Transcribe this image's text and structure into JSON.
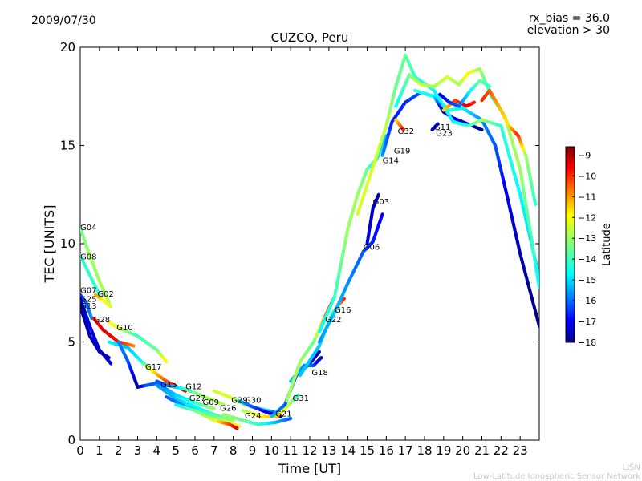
{
  "header": {
    "date": "2009/07/30",
    "rx_bias": "rx_bias = 36.0",
    "elevation": "elevation > 30"
  },
  "footer": {
    "org_short": "LISN",
    "org_long": "Low-Latitude Ionospheric Sensor Network"
  },
  "chart_data": {
    "type": "scatter",
    "title": "CUZCO, Peru",
    "xlabel": "Time [UT]",
    "ylabel": "TEC [UNITS]",
    "xlim": [
      0,
      24
    ],
    "ylim": [
      0,
      20
    ],
    "xticks": [
      0,
      1,
      2,
      3,
      4,
      5,
      6,
      7,
      8,
      9,
      10,
      11,
      12,
      13,
      14,
      15,
      16,
      17,
      18,
      19,
      20,
      21,
      22,
      23
    ],
    "yticks": [
      0,
      5,
      10,
      15,
      20
    ],
    "grid": false,
    "colorbar": {
      "label": "Latitude",
      "range": [
        -18,
        -8.6
      ],
      "ticks": [
        -9,
        -10,
        -11,
        -12,
        -13,
        -14,
        -15,
        -16,
        -17,
        -18
      ],
      "colors": [
        "#00007f",
        "#0000ff",
        "#007fff",
        "#00ffff",
        "#7fff7f",
        "#ffff00",
        "#ff7f00",
        "#ff0000",
        "#7f0000"
      ]
    },
    "series": [
      {
        "name": "G04",
        "label_xy": [
          0.0,
          10.7
        ],
        "points": [
          [
            0,
            10.8,
            -13.5
          ],
          [
            0.5,
            9.4,
            -13
          ],
          [
            1,
            8.1,
            -13
          ],
          [
            1.5,
            7.0,
            -12.8
          ]
        ]
      },
      {
        "name": "G08",
        "label_xy": [
          0.0,
          9.2
        ],
        "points": [
          [
            0,
            9.4,
            -14
          ],
          [
            0.6,
            8.2,
            -14
          ],
          [
            1.0,
            7.4,
            -14.2
          ]
        ]
      },
      {
        "name": "G07",
        "label_xy": [
          0.0,
          7.5
        ],
        "points": [
          [
            0,
            7.4,
            -16.5
          ],
          [
            0.3,
            7.0,
            -16
          ],
          [
            0.6,
            6.2,
            -15.5
          ]
        ]
      },
      {
        "name": "G25",
        "label_xy": [
          0.0,
          7.05
        ],
        "points": [
          [
            0,
            7.2,
            -17.5
          ],
          [
            0.5,
            5.8,
            -17
          ],
          [
            1.0,
            4.6,
            -17
          ],
          [
            1.6,
            3.9,
            -17.2
          ]
        ]
      },
      {
        "name": "G13",
        "label_xy": [
          0.0,
          6.7
        ],
        "points": [
          [
            0,
            6.8,
            -17.8
          ],
          [
            0.5,
            5.3,
            -17.5
          ],
          [
            1.0,
            4.5,
            -17.5
          ],
          [
            1.5,
            4.2,
            -17.5
          ]
        ]
      },
      {
        "name": "G02",
        "label_xy": [
          0.9,
          7.3
        ],
        "points": [
          [
            0.8,
            7.4,
            -11
          ],
          [
            1.2,
            7.1,
            -12
          ],
          [
            1.6,
            6.8,
            -12.5
          ]
        ]
      },
      {
        "name": "G28",
        "label_xy": [
          0.7,
          6.0
        ],
        "points": [
          [
            0.7,
            6.2,
            -10
          ],
          [
            1.2,
            5.6,
            -9.5
          ],
          [
            2,
            5.0,
            -9.8
          ],
          [
            2.8,
            4.8,
            -11
          ]
        ]
      },
      {
        "name": "G10",
        "label_xy": [
          1.9,
          5.6
        ],
        "points": [
          [
            1.5,
            6.0,
            -12
          ],
          [
            2.0,
            5.7,
            -12.5
          ],
          [
            3.0,
            5.3,
            -14
          ],
          [
            4.0,
            4.6,
            -13.5
          ],
          [
            4.5,
            4.0,
            -12
          ]
        ]
      },
      {
        "name": "G17",
        "label_xy": [
          3.4,
          3.6
        ],
        "points": [
          [
            1.5,
            5.0,
            -14.5
          ],
          [
            2.5,
            4.7,
            -15
          ],
          [
            3.2,
            4.0,
            -14.5
          ],
          [
            3.8,
            3.5,
            -12
          ],
          [
            4.5,
            3.0,
            -10.5
          ],
          [
            5.5,
            2.5,
            -9.5
          ]
        ]
      },
      {
        "name": "G15",
        "label_xy": [
          4.2,
          2.7
        ],
        "points": [
          [
            2.0,
            5.0,
            -15.5
          ],
          [
            2.5,
            4.0,
            -16
          ],
          [
            3.0,
            2.7,
            -17.8
          ],
          [
            3.5,
            2.8,
            -16
          ],
          [
            4.0,
            2.9,
            -16
          ],
          [
            5,
            2.3,
            -15
          ],
          [
            6,
            1.9,
            -14
          ],
          [
            7,
            1.6,
            -13
          ]
        ]
      },
      {
        "name": "G12",
        "label_xy": [
          5.5,
          2.6
        ],
        "points": [
          [
            4.0,
            3.0,
            -16
          ],
          [
            4.5,
            2.8,
            -16
          ],
          [
            5.0,
            2.7,
            -15
          ],
          [
            5.5,
            2.6,
            -14
          ],
          [
            6.5,
            2.2,
            -13
          ],
          [
            7.5,
            1.8,
            -13
          ]
        ]
      },
      {
        "name": "G27",
        "label_xy": [
          5.7,
          2.0
        ],
        "points": [
          [
            4.0,
            2.8,
            -15.5
          ],
          [
            5.0,
            2.1,
            -15
          ],
          [
            6.0,
            1.7,
            -14.5
          ],
          [
            7.0,
            1.3,
            -14
          ],
          [
            8.0,
            1.0,
            -13
          ]
        ]
      },
      {
        "name": "G09",
        "label_xy": [
          6.4,
          1.8
        ],
        "points": [
          [
            4.5,
            2.2,
            -16
          ],
          [
            5.5,
            1.7,
            -15.5
          ],
          [
            6.5,
            1.4,
            -14
          ],
          [
            7.5,
            1.0,
            -13
          ],
          [
            8.3,
            0.7,
            -12
          ]
        ]
      },
      {
        "name": "G26",
        "label_xy": [
          7.3,
          1.5
        ],
        "points": [
          [
            5,
            1.8,
            -14.5
          ],
          [
            6,
            1.5,
            -13.5
          ],
          [
            7,
            1.0,
            -12.5
          ],
          [
            7.8,
            0.8,
            -10.5
          ],
          [
            8.2,
            0.6,
            -9.5
          ]
        ]
      },
      {
        "name": "G29",
        "label_xy": [
          7.9,
          1.9
        ],
        "points": [
          [
            7,
            2.5,
            -12.5
          ],
          [
            7.8,
            2.2,
            -12.5
          ],
          [
            8.6,
            1.8,
            -13
          ],
          [
            9.4,
            1.6,
            -14
          ],
          [
            10.2,
            1.4,
            -16
          ]
        ]
      },
      {
        "name": "G30",
        "label_xy": [
          8.6,
          1.9
        ],
        "points": [
          [
            8.3,
            2.0,
            -15
          ],
          [
            9.0,
            1.7,
            -16
          ],
          [
            9.8,
            1.4,
            -17
          ],
          [
            10.5,
            1.2,
            -17.5
          ]
        ]
      },
      {
        "name": "G24",
        "label_xy": [
          8.6,
          1.1
        ],
        "points": [
          [
            7.5,
            1.3,
            -13
          ],
          [
            8.5,
            1.0,
            -13.5
          ],
          [
            9.3,
            0.8,
            -14
          ],
          [
            10.2,
            0.9,
            -15
          ],
          [
            11,
            1.1,
            -16
          ]
        ]
      },
      {
        "name": "G21",
        "label_xy": [
          10.2,
          1.2
        ],
        "points": [
          [
            8.5,
            1.5,
            -13
          ],
          [
            9.5,
            1.2,
            -12
          ],
          [
            10.3,
            1.2,
            -11.5
          ],
          [
            10.8,
            1.7,
            -12.5
          ],
          [
            11.4,
            2.3,
            -14
          ]
        ]
      },
      {
        "name": "G31",
        "label_xy": [
          11.1,
          2.0
        ],
        "points": [
          [
            10.0,
            1.2,
            -15
          ],
          [
            10.7,
            1.8,
            -16
          ],
          [
            11.3,
            3.3,
            -16.5
          ],
          [
            12.0,
            3.9,
            -17
          ],
          [
            12.5,
            4.5,
            -17.5
          ]
        ]
      },
      {
        "name": "G18",
        "label_xy": [
          12.1,
          3.3
        ],
        "points": [
          [
            11,
            3.0,
            -15
          ],
          [
            11.7,
            3.8,
            -15.5
          ],
          [
            12.2,
            3.8,
            -16
          ],
          [
            12.6,
            4.2,
            -17.5
          ]
        ]
      },
      {
        "name": "G22",
        "label_xy": [
          12.8,
          6.0
        ],
        "points": [
          [
            10.8,
            2.0,
            -13
          ],
          [
            11.5,
            4.0,
            -13
          ],
          [
            12.2,
            5.0,
            -13.5
          ],
          [
            12.8,
            6.3,
            -11
          ],
          [
            13.3,
            7.3,
            -9.5
          ]
        ]
      },
      {
        "name": "G16",
        "label_xy": [
          13.3,
          6.5
        ],
        "points": [
          [
            11.5,
            3.3,
            -15
          ],
          [
            12.5,
            4.8,
            -15
          ],
          [
            13.2,
            6.5,
            -14
          ],
          [
            13.8,
            7.2,
            -10
          ]
        ]
      },
      {
        "name": "G06",
        "label_xy": [
          14.8,
          9.7
        ],
        "points": [
          [
            12.5,
            5.0,
            -15.5
          ],
          [
            13.3,
            6.5,
            -15
          ],
          [
            14.0,
            8.0,
            -15.5
          ],
          [
            14.8,
            9.6,
            -16
          ],
          [
            15.3,
            10.1,
            -16.5
          ],
          [
            15.8,
            11.5,
            -17
          ]
        ]
      },
      {
        "name": "G03",
        "label_xy": [
          15.3,
          12.0
        ],
        "points": [
          [
            15.0,
            10.0,
            -17
          ],
          [
            15.3,
            11.8,
            -17.5
          ],
          [
            15.6,
            12.5,
            -17.5
          ]
        ]
      },
      {
        "name": "G14",
        "label_xy": [
          15.8,
          14.1
        ],
        "points": [
          [
            12.5,
            5.5,
            -14.5
          ],
          [
            13.3,
            7.3,
            -14
          ],
          [
            14.0,
            10.8,
            -13
          ],
          [
            14.5,
            12.5,
            -13
          ],
          [
            15.0,
            13.8,
            -13.5
          ],
          [
            15.5,
            14.3,
            -14.5
          ],
          [
            16.0,
            15.5,
            -15
          ]
        ]
      },
      {
        "name": "G19",
        "label_xy": [
          16.4,
          14.6
        ],
        "points": [
          [
            15.8,
            14.5,
            -15.5
          ],
          [
            16.3,
            16.2,
            -16.5
          ],
          [
            17.0,
            17.2,
            -16.5
          ],
          [
            17.8,
            17.7,
            -16
          ],
          [
            18.5,
            17.5,
            -15
          ],
          [
            19.3,
            16.8,
            -14
          ],
          [
            20.0,
            16.9,
            -14.5
          ],
          [
            21.0,
            16.3,
            -15.5
          ],
          [
            21.7,
            15.0,
            -16
          ],
          [
            22.3,
            12.5,
            -17
          ],
          [
            23.0,
            9.5,
            -17.5
          ],
          [
            24,
            5.8,
            -18
          ]
        ]
      },
      {
        "name": "G32",
        "label_xy": [
          16.6,
          15.6
        ],
        "points": [
          [
            16.5,
            16.3,
            -12
          ],
          [
            16.9,
            15.8,
            -10
          ]
        ]
      },
      {
        "name": "G11",
        "label_xy": [
          18.5,
          15.8
        ],
        "points": [
          [
            17.5,
            17.8,
            -14
          ],
          [
            18.5,
            17.5,
            -14.5
          ],
          [
            19.0,
            16.7,
            -17.5
          ],
          [
            19.5,
            16.4,
            -17
          ],
          [
            20.0,
            16.2,
            -17
          ],
          [
            21.0,
            15.8,
            -18
          ]
        ]
      },
      {
        "name": "G23",
        "label_xy": [
          18.6,
          15.5
        ],
        "points": [
          [
            18.4,
            15.8,
            -17.5
          ],
          [
            18.7,
            16.1,
            -17
          ]
        ]
      },
      {
        "name": "ARC1",
        "points": [
          [
            14.5,
            11.5,
            -12.5
          ],
          [
            15.0,
            13.0,
            -12.5
          ],
          [
            15.5,
            14.5,
            -12.5
          ],
          [
            16.0,
            16.0,
            -12.8
          ],
          [
            16.5,
            18.0,
            -13.5
          ],
          [
            17.0,
            19.6,
            -13.5
          ],
          [
            17.5,
            18.5,
            -14
          ],
          [
            18.5,
            17.8,
            -14.5
          ],
          [
            19.5,
            16.2,
            -14.5
          ],
          [
            20.3,
            16.0,
            -14
          ],
          [
            21.0,
            16.3,
            -13
          ],
          [
            22.0,
            16.0,
            -14
          ],
          [
            23.0,
            12.5,
            -14.5
          ],
          [
            24,
            8.3,
            -15
          ]
        ]
      },
      {
        "name": "ARC2",
        "points": [
          [
            16.5,
            17.0,
            -14.5
          ],
          [
            17.2,
            18.6,
            -13.5
          ],
          [
            17.8,
            18.1,
            -12.5
          ],
          [
            18.5,
            18.0,
            -13
          ],
          [
            19.2,
            18.5,
            -12.5
          ],
          [
            19.8,
            18.1,
            -13
          ],
          [
            20.3,
            18.7,
            -12
          ],
          [
            20.9,
            18.9,
            -13
          ],
          [
            21.5,
            17.5,
            -14
          ],
          [
            22.2,
            16.5,
            -13
          ],
          [
            23.0,
            13.8,
            -13
          ],
          [
            24,
            7.8,
            -14.5
          ]
        ]
      },
      {
        "name": "ARC3",
        "points": [
          [
            19.0,
            16.8,
            -12
          ],
          [
            19.6,
            17.3,
            -10.5
          ],
          [
            20.2,
            17.0,
            -9.5
          ],
          [
            20.6,
            17.2,
            -10
          ]
        ]
      },
      {
        "name": "ARC4",
        "points": [
          [
            21.0,
            17.3,
            -10
          ],
          [
            21.4,
            17.8,
            -10.5
          ],
          [
            22.0,
            16.8,
            -11.5
          ],
          [
            22.4,
            16.0,
            -12
          ],
          [
            22.9,
            15.5,
            -10
          ],
          [
            23.3,
            14.5,
            -13
          ],
          [
            23.8,
            12.0,
            -14
          ]
        ]
      },
      {
        "name": "ARC5",
        "points": [
          [
            18.8,
            17.6,
            -17
          ],
          [
            19.3,
            17.2,
            -16.5
          ],
          [
            19.8,
            17.0,
            -16
          ],
          [
            20.4,
            17.8,
            -14.5
          ],
          [
            20.9,
            18.3,
            -13.5
          ],
          [
            21.4,
            18.0,
            -14
          ]
        ]
      }
    ]
  }
}
